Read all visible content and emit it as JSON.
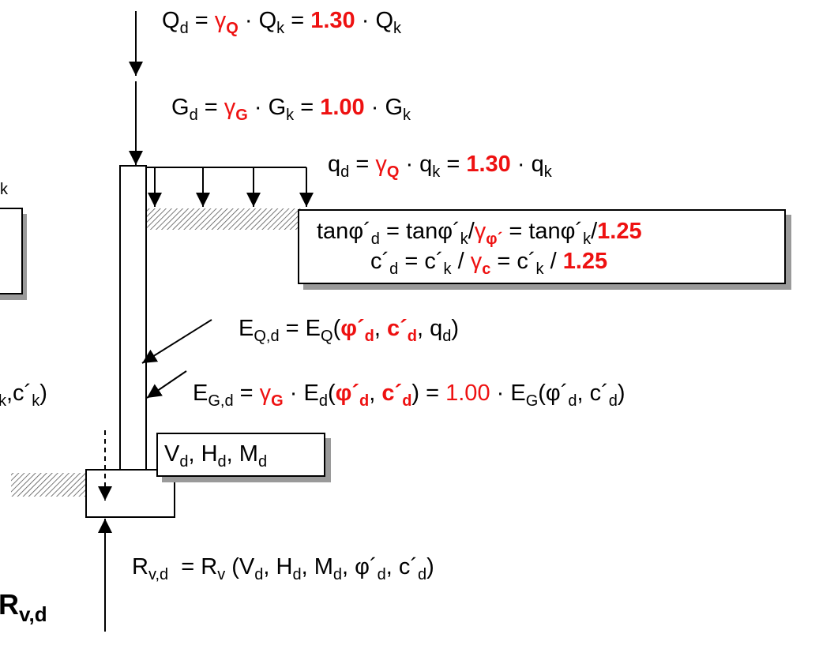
{
  "eq_Qd": {
    "lhs": "Q",
    "lhs_sub": "d",
    "eq1": " = ",
    "gamma": "γ",
    "gamma_sub": "Q",
    "dot1": " · Q",
    "k1": "k",
    "eq2": " = ",
    "factor": "1.30",
    "dot2": " · Q",
    "k2": "k"
  },
  "eq_Gd": {
    "lhs": "G",
    "lhs_sub": "d",
    "eq1": " = ",
    "gamma": "γ",
    "gamma_sub": "G",
    "dot1": " · G",
    "k1": "k",
    "eq2": " = ",
    "factor": "1.00",
    "dot2": " · G",
    "k2": "k"
  },
  "eq_qd": {
    "lhs": "q",
    "lhs_sub": "d",
    "eq1": " = ",
    "gamma": "γ",
    "gamma_sub": "Q",
    "dot1": " · q",
    "k1": "k",
    "eq2": " = ",
    "factor": "1.30",
    "dot2": " · q",
    "k2": "k"
  },
  "left_fragment_k": "k",
  "left_fragment_ck": {
    "a": "",
    "b": "k",
    "c": ",c´",
    "d": "k",
    "e": ")"
  },
  "soil_box": {
    "l1": {
      "a": "tanφ´",
      "a_sub": "d",
      "b": " = tanφ´",
      "b_sub": "k",
      "c": "/",
      "gamma": "γ",
      "gamma_sub": "φ´",
      "d": " = tanφ´",
      "d_sub": "k",
      "e": "/",
      "factor": "1.25"
    },
    "l2": {
      "a": "c´",
      "a_sub": "d",
      "b": " = c´",
      "b_sub": "k",
      "c": " / ",
      "gamma": "γ",
      "gamma_sub": "c",
      "d": " = c´",
      "d_sub": "k",
      "e": " / ",
      "factor": "1.25"
    }
  },
  "eq_EQd": {
    "a": "E",
    "a_sub": "Q,d",
    "b": " = E",
    "b_sub": "Q",
    "c": "(",
    "phi": "φ´",
    "phi_sub": "d",
    "comma": ", ",
    "c_": "c´",
    "c_sub": "d",
    "d": ", q",
    "d_sub": "d",
    "e": ")"
  },
  "eq_EGd": {
    "a": "E",
    "a_sub": "G,d",
    "b": " = ",
    "gamma": "γ",
    "gamma_sub": "G",
    "c": " · E",
    "c_sub": "d",
    "d": "(",
    "phi": "φ´",
    "phi_sub": "d",
    "comma": ", ",
    "c_": "c´",
    "e": ") = ",
    "factor": "1.00",
    "f": " · E",
    "f_sub": "G",
    "g": "(φ´",
    "g_sub": "d",
    "h": ", c´",
    "h_sub": "d",
    "i": ")"
  },
  "vhm_box": {
    "a": "V",
    "a_sub": "d",
    "b": ", H",
    "b_sub": "d",
    "c": ", M",
    "c_sub": "d"
  },
  "eq_Rvd": {
    "a": "R",
    "a_sub": "v,d",
    "b": "  = R",
    "b_sub": "v",
    "c": " (V",
    "c_sub": "d",
    "d": ", H",
    "d_sub": "d",
    "e": ", M",
    "e_sub": "d",
    "f": ", φ´",
    "f_sub": "d",
    "g": ", c´",
    "g_sub": "d",
    "h": ")"
  },
  "big_label": {
    "a": "R",
    "a_sub": "v,d"
  },
  "colors": {
    "accent": "#ee1111",
    "shadow": "#9a9a9a",
    "hatch": "#555555"
  }
}
